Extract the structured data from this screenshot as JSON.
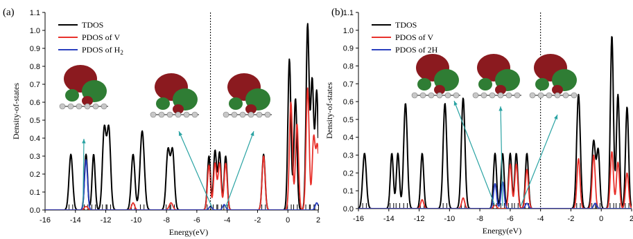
{
  "chart_data": [
    {
      "type": "line",
      "panel_label": "(a)",
      "xlabel": "Energy(eV)",
      "ylabel": "Density-of-states",
      "xlim": [
        -16,
        2
      ],
      "ylim": [
        0,
        1.1
      ],
      "xticks": [
        "-16",
        "-14",
        "-12",
        "-10",
        "-8",
        "-6",
        "-4",
        "-2",
        "0",
        "2"
      ],
      "yticks": [
        "0.0",
        "0.1",
        "0.2",
        "0.3",
        "0.4",
        "0.5",
        "0.6",
        "0.7",
        "0.8",
        "0.9",
        "1.0",
        "1.1"
      ],
      "fermi_level": -5.1,
      "legend": [
        "TDOS",
        "PDOS of V",
        "PDOS of H2"
      ],
      "series": [
        {
          "name": "TDOS",
          "color": "#000000",
          "peaks": [
            [
              -14.3,
              0.31,
              0.12
            ],
            [
              -13.3,
              0.31,
              0.1
            ],
            [
              -12.8,
              0.31,
              0.1
            ],
            [
              -12.1,
              0.45,
              0.12
            ],
            [
              -11.8,
              0.45,
              0.12
            ],
            [
              -10.2,
              0.31,
              0.12
            ],
            [
              -9.6,
              0.44,
              0.14
            ],
            [
              -7.9,
              0.33,
              0.12
            ],
            [
              -7.6,
              0.33,
              0.12
            ],
            [
              -5.2,
              0.3,
              0.1
            ],
            [
              -4.8,
              0.33,
              0.1
            ],
            [
              -4.5,
              0.32,
              0.1
            ],
            [
              -4.1,
              0.3,
              0.1
            ],
            [
              -1.6,
              0.31,
              0.1
            ],
            [
              0.1,
              0.84,
              0.1
            ],
            [
              0.5,
              0.62,
              0.1
            ],
            [
              1.3,
              1.03,
              0.1
            ],
            [
              1.6,
              0.72,
              0.1
            ],
            [
              1.9,
              0.66,
              0.1
            ]
          ]
        },
        {
          "name": "PDOS of V",
          "color": "#e8302a",
          "peaks": [
            [
              -13.3,
              0.02,
              0.12
            ],
            [
              -10.2,
              0.04,
              0.1
            ],
            [
              -7.7,
              0.04,
              0.12
            ],
            [
              -5.2,
              0.25,
              0.1
            ],
            [
              -4.8,
              0.26,
              0.1
            ],
            [
              -4.5,
              0.26,
              0.1
            ],
            [
              -4.1,
              0.26,
              0.1
            ],
            [
              -1.6,
              0.3,
              0.1
            ],
            [
              0.2,
              0.6,
              0.1
            ],
            [
              0.6,
              0.48,
              0.1
            ],
            [
              1.3,
              0.68,
              0.1
            ],
            [
              1.7,
              0.4,
              0.1
            ],
            [
              1.95,
              0.35,
              0.1
            ]
          ]
        },
        {
          "name": "PDOS of H2",
          "color": "#2a3fbf",
          "peaks": [
            [
              -13.3,
              0.28,
              0.1
            ],
            [
              -5.1,
              0.02,
              0.1
            ],
            [
              -4.2,
              0.03,
              0.1
            ],
            [
              1.9,
              0.04,
              0.1
            ]
          ]
        }
      ],
      "annotation_targets": [
        -13.5,
        -5.0,
        -4.1
      ]
    },
    {
      "type": "line",
      "panel_label": "(b)",
      "xlabel": "Energy(eV)",
      "ylabel": "Density-of-states",
      "xlim": [
        -16,
        2
      ],
      "ylim": [
        0,
        1.1
      ],
      "xticks": [
        "-16",
        "-14",
        "-12",
        "-10",
        "-8",
        "-6",
        "-4",
        "-2",
        "0",
        "2"
      ],
      "yticks": [
        "0.0",
        "0.1",
        "0.2",
        "0.3",
        "0.4",
        "0.5",
        "0.6",
        "0.7",
        "0.8",
        "0.9",
        "1.0",
        "1.1"
      ],
      "fermi_level": -4.0,
      "legend": [
        "TDOS",
        "PDOS of V",
        "PDOS of 2H"
      ],
      "series": [
        {
          "name": "TDOS",
          "color": "#000000",
          "peaks": [
            [
              -15.6,
              0.31,
              0.12
            ],
            [
              -13.8,
              0.31,
              0.1
            ],
            [
              -13.4,
              0.31,
              0.1
            ],
            [
              -12.9,
              0.59,
              0.12
            ],
            [
              -11.8,
              0.31,
              0.1
            ],
            [
              -10.3,
              0.59,
              0.12
            ],
            [
              -9.1,
              0.62,
              0.12
            ],
            [
              -7.0,
              0.31,
              0.1
            ],
            [
              -6.5,
              0.31,
              0.1
            ],
            [
              -6.0,
              0.31,
              0.1
            ],
            [
              -5.6,
              0.31,
              0.1
            ],
            [
              -4.9,
              0.31,
              0.1
            ],
            [
              -1.5,
              0.64,
              0.12
            ],
            [
              -0.5,
              0.38,
              0.12
            ],
            [
              -0.2,
              0.32,
              0.1
            ],
            [
              0.7,
              0.97,
              0.1
            ],
            [
              1.1,
              0.64,
              0.1
            ],
            [
              1.7,
              0.57,
              0.1
            ]
          ]
        },
        {
          "name": "PDOS of V",
          "color": "#e8302a",
          "peaks": [
            [
              -11.8,
              0.05,
              0.1
            ],
            [
              -9.1,
              0.06,
              0.1
            ],
            [
              -7.0,
              0.02,
              0.1
            ],
            [
              -6.0,
              0.25,
              0.1
            ],
            [
              -5.6,
              0.25,
              0.1
            ],
            [
              -4.9,
              0.22,
              0.1
            ],
            [
              -1.5,
              0.28,
              0.1
            ],
            [
              -0.5,
              0.3,
              0.1
            ],
            [
              0.7,
              0.32,
              0.1
            ],
            [
              1.1,
              0.26,
              0.1
            ],
            [
              1.7,
              0.2,
              0.1
            ]
          ]
        },
        {
          "name": "PDOS of 2H",
          "color": "#2a3fbf",
          "peaks": [
            [
              -7.0,
              0.14,
              0.1
            ],
            [
              -6.5,
              0.15,
              0.1
            ],
            [
              -4.9,
              0.03,
              0.1
            ],
            [
              -0.4,
              0.03,
              0.1
            ]
          ]
        }
      ],
      "annotation_targets": [
        -7.0,
        -6.5,
        -5.3
      ]
    }
  ]
}
